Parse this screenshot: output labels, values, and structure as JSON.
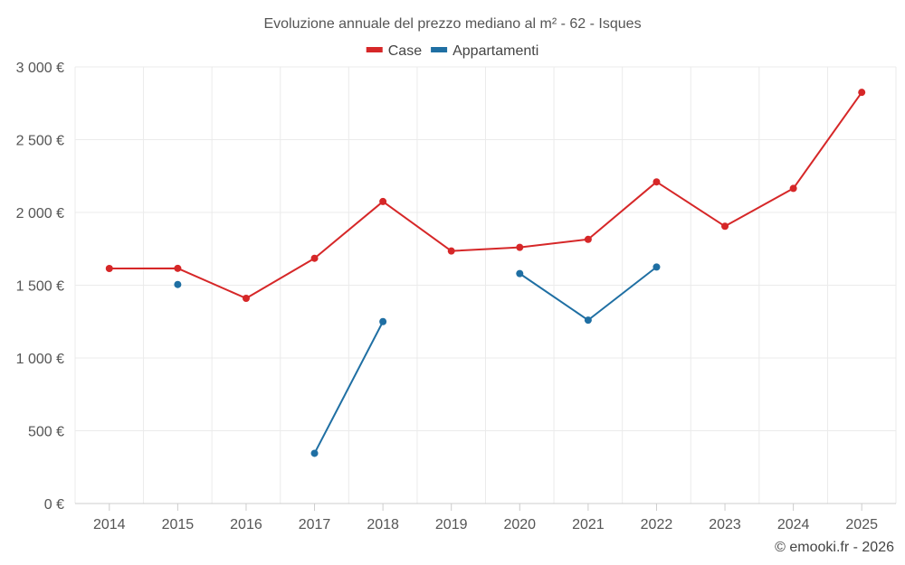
{
  "chart_data": {
    "type": "line",
    "title": "Evoluzione annuale del prezzo mediano al m² - 62 - Isques",
    "categories": [
      "2014",
      "2015",
      "2016",
      "2017",
      "2018",
      "2019",
      "2020",
      "2021",
      "2022",
      "2023",
      "2024",
      "2025"
    ],
    "ylim": [
      0,
      3000
    ],
    "yticks": [
      0,
      500,
      1000,
      1500,
      2000,
      2500,
      3000
    ],
    "ytick_labels": [
      "0 €",
      "500 €",
      "1 000 €",
      "1 500 €",
      "2 000 €",
      "2 500 €",
      "3 000 €"
    ],
    "grid": true,
    "legend_position": "top-center",
    "series": [
      {
        "name": "Case",
        "color": "#d62728",
        "values": [
          1615,
          1616,
          1410,
          1685,
          2075,
          1735,
          1760,
          1815,
          2210,
          1905,
          2165,
          2825
        ]
      },
      {
        "name": "Appartamenti",
        "color": "#1f6fa3",
        "values": [
          null,
          1505,
          null,
          345,
          1250,
          null,
          1580,
          1260,
          1625,
          null,
          null,
          null
        ]
      }
    ]
  },
  "credit": "© emooki.fr - 2026"
}
